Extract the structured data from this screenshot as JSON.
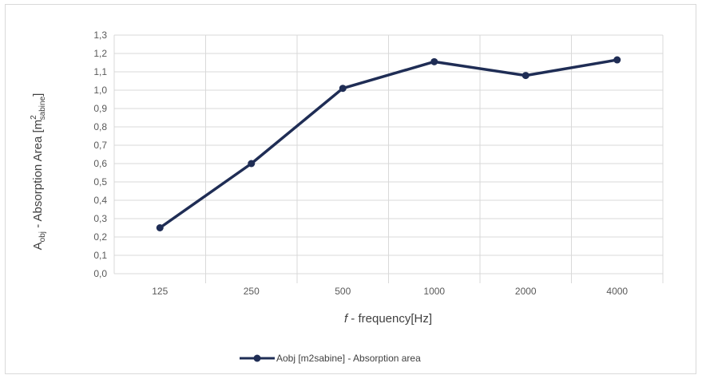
{
  "chart_data": {
    "type": "line",
    "categories": [
      "125",
      "250",
      "500",
      "1000",
      "2000",
      "4000"
    ],
    "series": [
      {
        "name": "Aobj [m2sabine] - Absorption area",
        "values": [
          0.25,
          0.6,
          1.01,
          1.155,
          1.08,
          1.165
        ],
        "color": "#1f2d55"
      }
    ],
    "xlabel": {
      "italic": "f",
      "rest": " - frequency[Hz]"
    },
    "ylabel": {
      "a": "A",
      "a_sub": "obj",
      "mid": " - Absorption Area [m",
      "sup": "2",
      "sub": "sabine",
      "end": "]"
    },
    "ylim": [
      0,
      1.3
    ],
    "yticks": [
      "0,0",
      "0,1",
      "0,2",
      "0,3",
      "0,4",
      "0,5",
      "0,6",
      "0,7",
      "0,8",
      "0,9",
      "1,0",
      "1,1",
      "1,2",
      "1,3"
    ],
    "grid": true,
    "legend_position": "bottom",
    "colors": {
      "line": "#1f2d55",
      "grid": "#d9d9d9",
      "axis_text": "#595959"
    }
  }
}
